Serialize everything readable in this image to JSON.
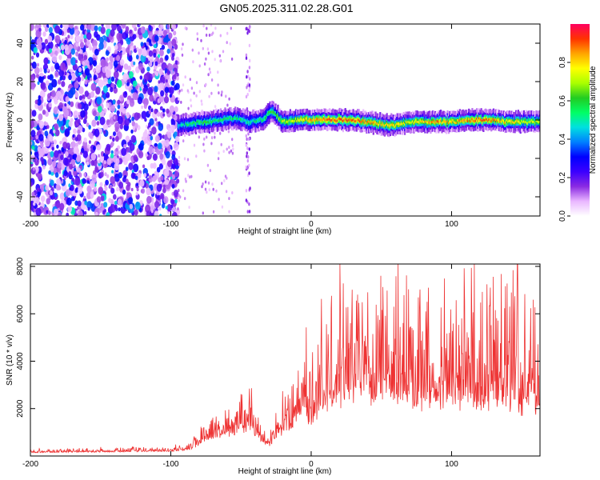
{
  "title": "GN05.2025.311.02.28.G01",
  "chart_data": [
    {
      "type": "heatmap",
      "panel": "spectrogram",
      "xlabel": "Height of straight line (km)",
      "ylabel": "Frequency (Hz)",
      "xlim": [
        -200,
        163
      ],
      "ylim": [
        -50,
        50
      ],
      "xticks": [
        -200,
        -100,
        0,
        100
      ],
      "yticks": [
        -40,
        -20,
        0,
        20,
        40
      ],
      "colorbar": {
        "label": "Normalized spectral amplitude",
        "range": [
          0,
          1
        ],
        "ticks": [
          "0.0",
          "0.2",
          "0.4",
          "0.6",
          "0.8"
        ],
        "colors": [
          "#ffffff",
          "#e9b6ff",
          "#8a2be2",
          "#3b00ff",
          "#0000ff",
          "#0080ff",
          "#00e0e0",
          "#00ff66",
          "#22cc22",
          "#aaff00",
          "#ffff00",
          "#ffa500",
          "#ff3300",
          "#ff0060"
        ]
      },
      "noise_region": {
        "x_range": [
          -200,
          -95
        ],
        "amplitude": 0.25
      },
      "signal_track": [
        {
          "x": -95,
          "freq": -3,
          "amp": 0.45
        },
        {
          "x": -85,
          "freq": -2,
          "amp": 0.55
        },
        {
          "x": -75,
          "freq": -1,
          "amp": 0.6
        },
        {
          "x": -65,
          "freq": 0,
          "amp": 0.55
        },
        {
          "x": -55,
          "freq": 1,
          "amp": 0.55
        },
        {
          "x": -45,
          "freq": -1,
          "amp": 0.5
        },
        {
          "x": -35,
          "freq": 0,
          "amp": 0.55
        },
        {
          "x": -28,
          "freq": 5,
          "amp": 0.6
        },
        {
          "x": -20,
          "freq": -1,
          "amp": 0.7
        },
        {
          "x": -10,
          "freq": 0,
          "amp": 0.75
        },
        {
          "x": 0,
          "freq": 0,
          "amp": 0.85
        },
        {
          "x": 10,
          "freq": 0,
          "amp": 0.9
        },
        {
          "x": 20,
          "freq": 0,
          "amp": 0.9
        },
        {
          "x": 30,
          "freq": 0,
          "amp": 0.9
        },
        {
          "x": 40,
          "freq": -1,
          "amp": 0.85
        },
        {
          "x": 50,
          "freq": -2,
          "amp": 0.8
        },
        {
          "x": 60,
          "freq": -3,
          "amp": 0.8
        },
        {
          "x": 70,
          "freq": -1,
          "amp": 0.75
        },
        {
          "x": 80,
          "freq": -1,
          "amp": 0.8
        },
        {
          "x": 90,
          "freq": -1,
          "amp": 0.85
        },
        {
          "x": 100,
          "freq": -1,
          "amp": 0.8
        },
        {
          "x": 110,
          "freq": 0,
          "amp": 0.85
        },
        {
          "x": 120,
          "freq": 0,
          "amp": 0.9
        },
        {
          "x": 130,
          "freq": 0,
          "amp": 0.85
        },
        {
          "x": 140,
          "freq": -1,
          "amp": 0.8
        },
        {
          "x": 150,
          "freq": -1,
          "amp": 0.75
        },
        {
          "x": 163,
          "freq": -1,
          "amp": 0.7
        }
      ]
    },
    {
      "type": "line",
      "panel": "snr",
      "xlabel": "Height of straight line (km)",
      "ylabel": "SNR (10 * v/v)",
      "xlim": [
        -200,
        163
      ],
      "ylim": [
        0,
        8100
      ],
      "xticks": [
        -200,
        -100,
        0,
        100
      ],
      "yticks": [
        2000,
        4000,
        6000,
        8000
      ],
      "color": "#ee3333",
      "series": [
        {
          "name": "SNR",
          "envelope": [
            {
              "x": -200,
              "base": 150,
              "spread": 120
            },
            {
              "x": -150,
              "base": 180,
              "spread": 150
            },
            {
              "x": -100,
              "base": 200,
              "spread": 150
            },
            {
              "x": -85,
              "base": 300,
              "spread": 300
            },
            {
              "x": -75,
              "base": 700,
              "spread": 900
            },
            {
              "x": -60,
              "base": 900,
              "spread": 1200
            },
            {
              "x": -45,
              "base": 1200,
              "spread": 1700
            },
            {
              "x": -38,
              "base": 800,
              "spread": 900
            },
            {
              "x": -30,
              "base": 400,
              "spread": 500
            },
            {
              "x": -22,
              "base": 1000,
              "spread": 1300
            },
            {
              "x": -12,
              "base": 1500,
              "spread": 2200
            },
            {
              "x": -5,
              "base": 2200,
              "spread": 2600
            },
            {
              "x": 0,
              "base": 1200,
              "spread": 2300
            },
            {
              "x": 5,
              "base": 2000,
              "spread": 3500
            },
            {
              "x": 15,
              "base": 2400,
              "spread": 4200
            },
            {
              "x": 30,
              "base": 2800,
              "spread": 4500
            },
            {
              "x": 60,
              "base": 2600,
              "spread": 4600
            },
            {
              "x": 100,
              "base": 2400,
              "spread": 4200
            },
            {
              "x": 130,
              "base": 2500,
              "spread": 4300
            },
            {
              "x": 148,
              "base": 2300,
              "spread": 5000
            },
            {
              "x": 163,
              "base": 2200,
              "spread": 3500
            }
          ],
          "peak_x": 147,
          "peak_value": 8100
        }
      ]
    }
  ]
}
